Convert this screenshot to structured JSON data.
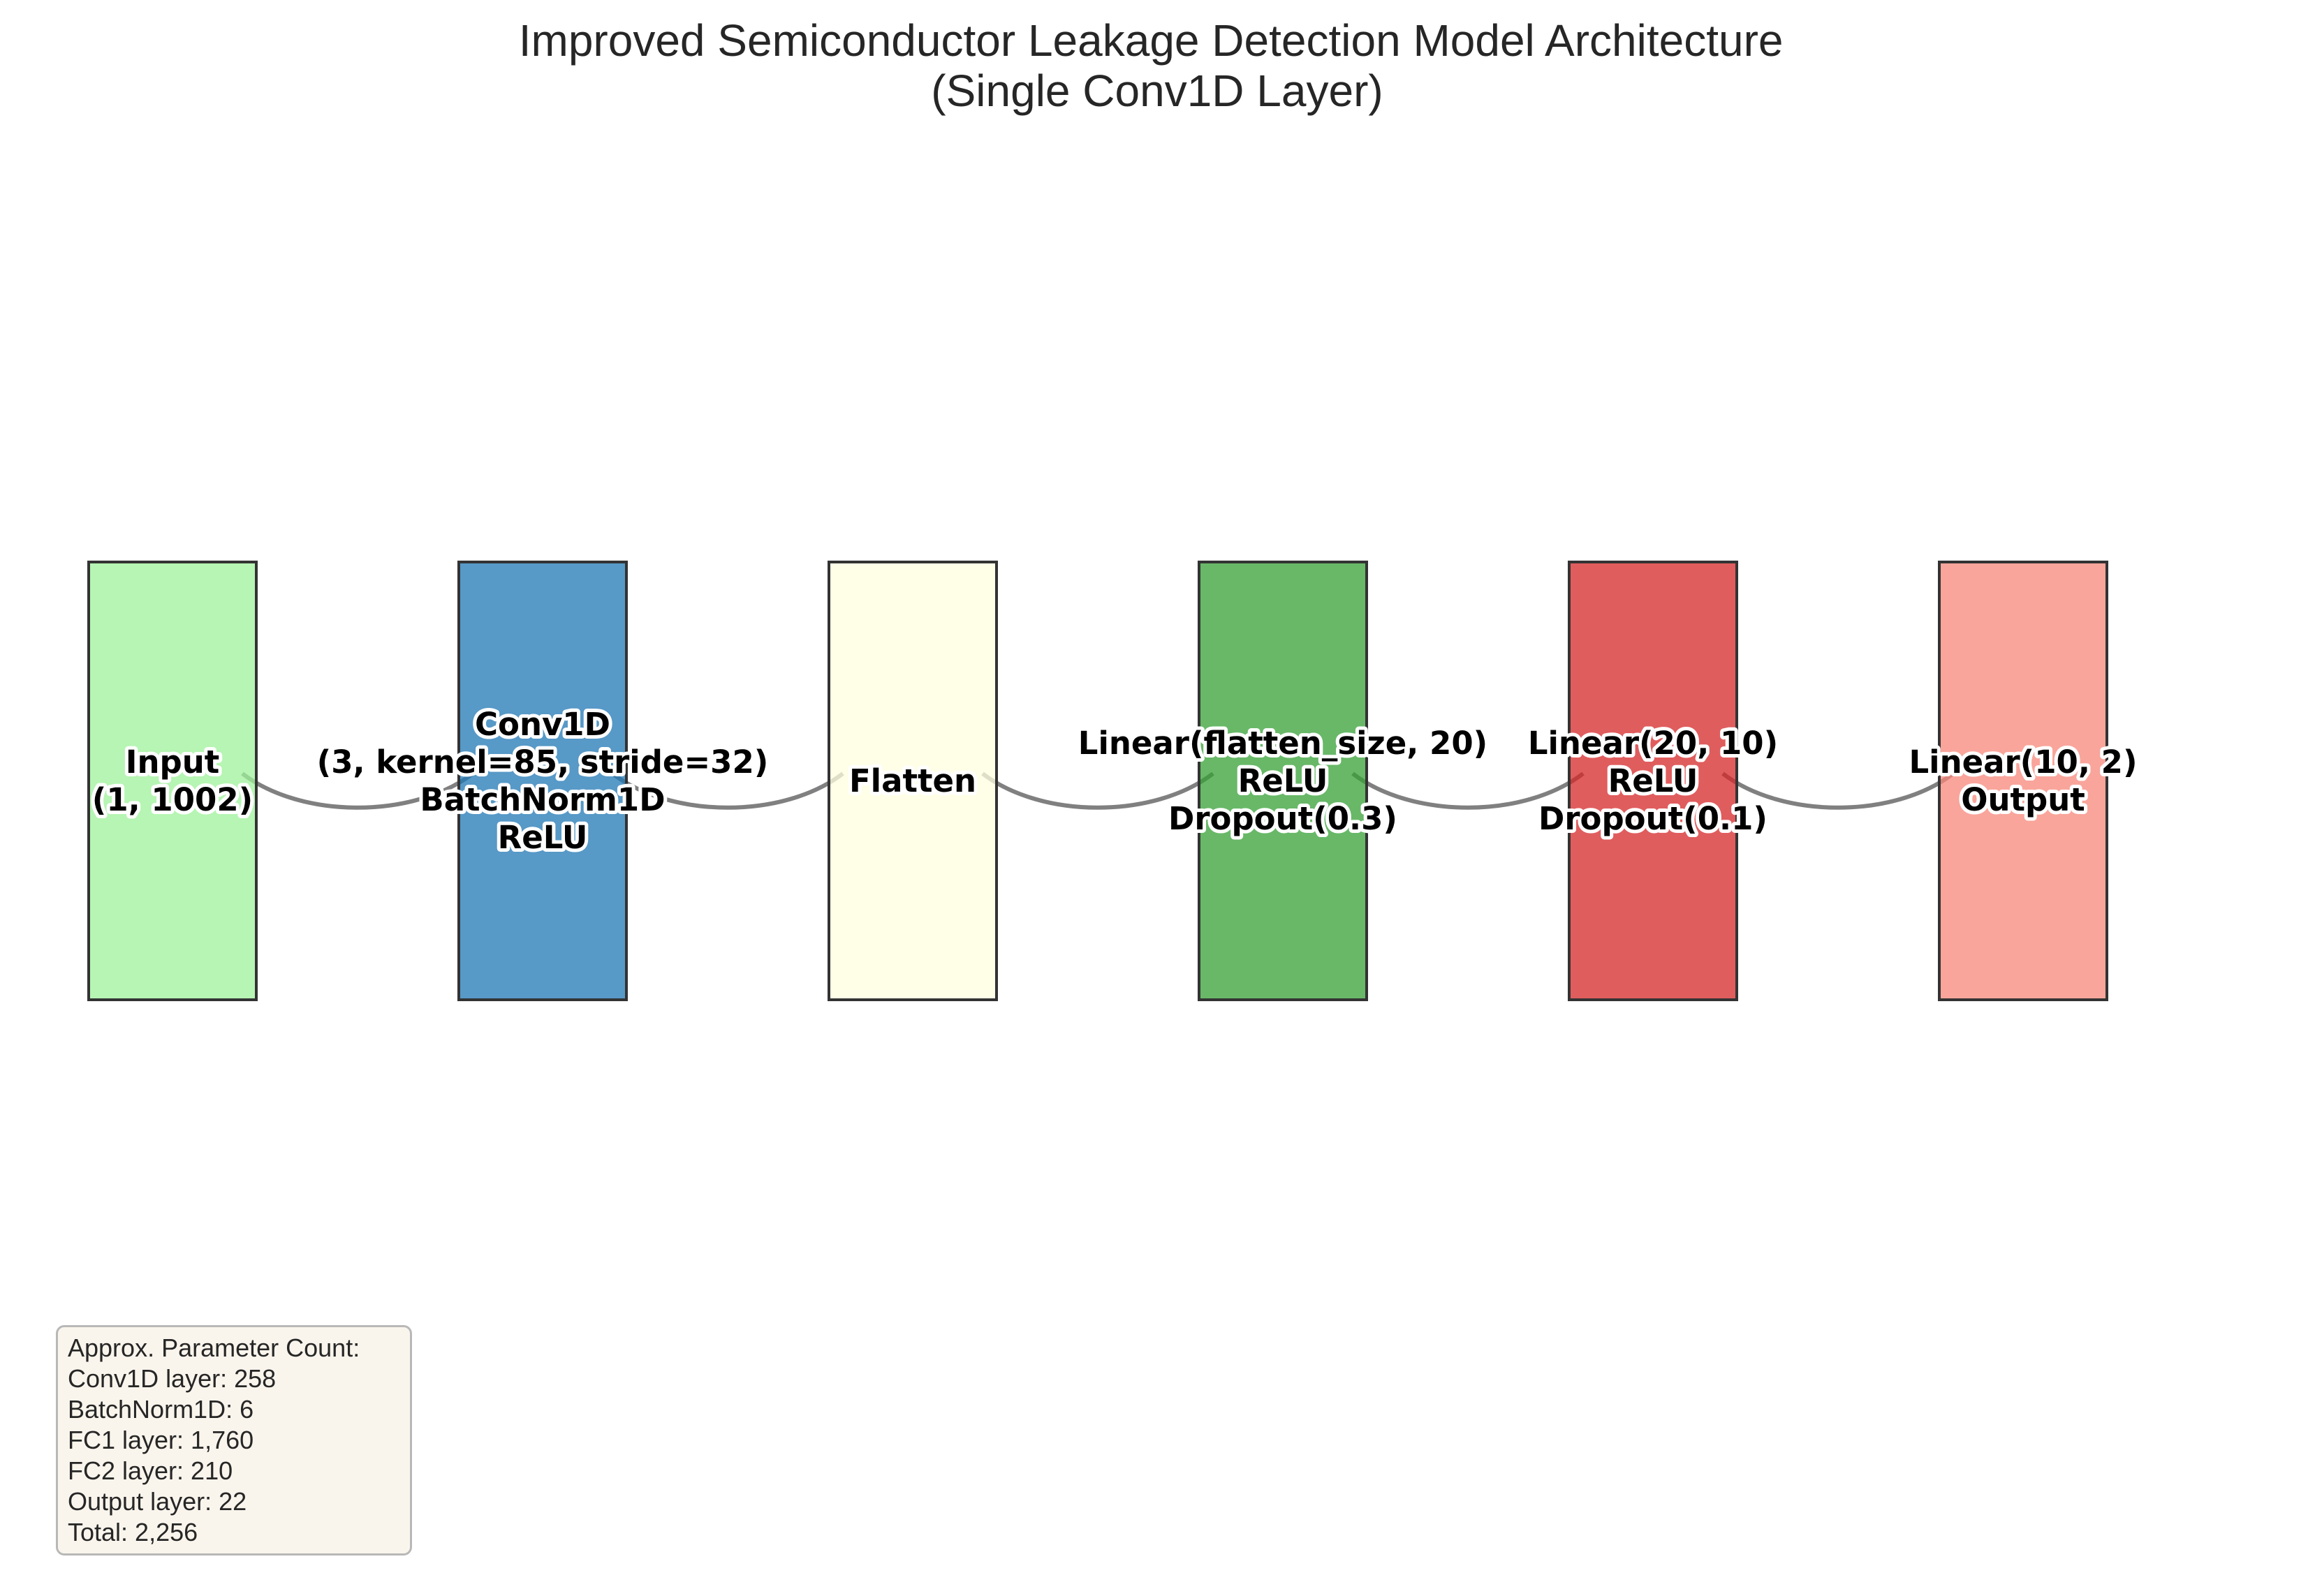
{
  "title": {
    "line1": "Improved Semiconductor Leakage Detection Model Architecture",
    "line2": "(Single Conv1D Layer)"
  },
  "layers": [
    {
      "id": "input",
      "color": "#9df29a",
      "lines": [
        "Input",
        "(1, 1002)"
      ]
    },
    {
      "id": "conv1d",
      "color": "#1f77b4",
      "lines": [
        "Conv1D",
        "(3, kernel=85, stride=32)",
        "BatchNorm1D",
        "ReLU"
      ]
    },
    {
      "id": "flatten",
      "color": "#ffffe0",
      "lines": [
        "Flatten"
      ]
    },
    {
      "id": "fc1",
      "color": "#35a035",
      "lines": [
        "Linear(flatten_size, 20)",
        "ReLU",
        "Dropout(0.3)"
      ]
    },
    {
      "id": "fc2",
      "color": "#d62728",
      "lines": [
        "Linear(20, 10)",
        "ReLU",
        "Dropout(0.1)"
      ]
    },
    {
      "id": "output",
      "color": "#f7877a",
      "lines": [
        "Linear(10, 2)",
        "Output"
      ]
    }
  ],
  "param_box": {
    "lines": [
      "Approx. Parameter Count:",
      "Conv1D layer: 258",
      "BatchNorm1D: 6",
      "FC1 layer: 1,760",
      "FC2 layer: 210",
      "Output layer: 22",
      "Total: 2,256"
    ]
  }
}
